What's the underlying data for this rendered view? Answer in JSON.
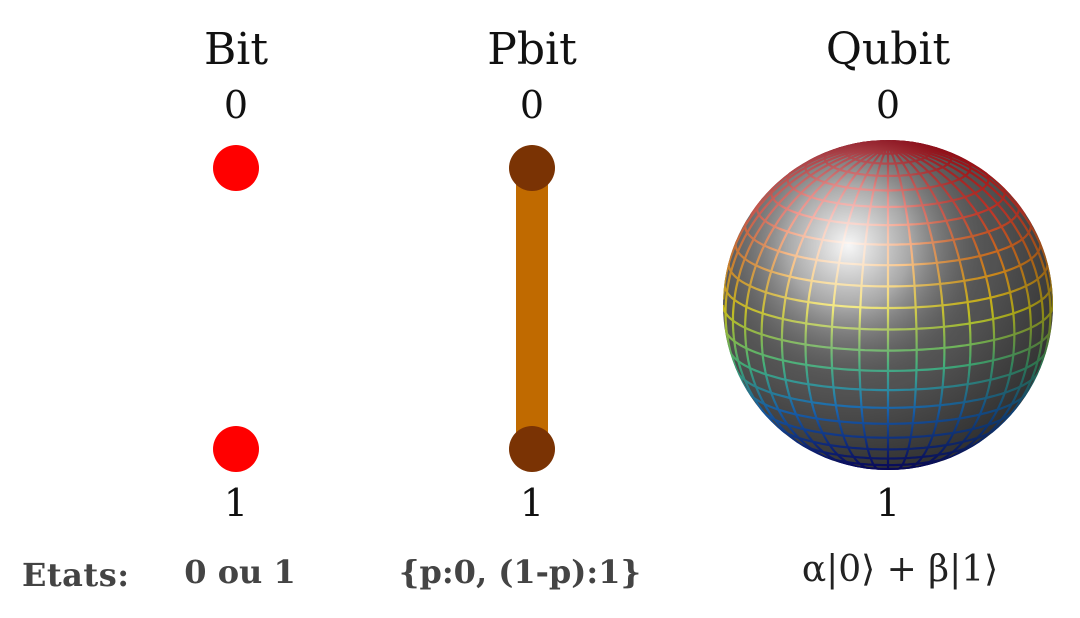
{
  "columns": [
    {
      "title": "Bit",
      "state_top": "0",
      "state_bottom": "1",
      "states": "0 ou 1"
    },
    {
      "title": "Pbit",
      "state_top": "0",
      "state_bottom": "1",
      "states": "{p:0, (1-p):1}"
    },
    {
      "title": "Qubit",
      "state_top": "0",
      "state_bottom": "1",
      "states": "α|0⟩ + β|1⟩"
    }
  ],
  "states_prefix": "Etats:",
  "colors": {
    "bit_dot": "#ff0000",
    "pbit_bar": "#c06a00",
    "pbit_end": "#7a3304"
  }
}
